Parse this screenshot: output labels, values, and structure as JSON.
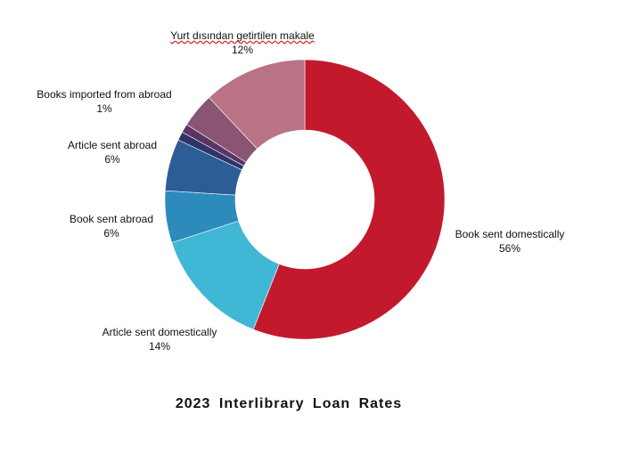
{
  "chart_data": {
    "type": "pie",
    "title": "2023 Interlibrary Loan Rates",
    "slices": [
      {
        "label": "Book sent domestically",
        "value": 56,
        "pct_label": "56%",
        "color": "#C3192D"
      },
      {
        "label": "Article sent domestically",
        "value": 14,
        "pct_label": "14%",
        "color": "#41B7D6"
      },
      {
        "label": "Book sent abroad",
        "value": 6,
        "pct_label": "6%",
        "color": "#2C8BBB"
      },
      {
        "label": "Article sent abroad",
        "value": 6,
        "pct_label": "6%",
        "color": "#2D5D95"
      },
      {
        "label": "",
        "value": 1,
        "pct_label": "",
        "color": "#2E3468"
      },
      {
        "label": "Books imported from abroad",
        "value": 1,
        "pct_label": "1%",
        "color": "#5A3563"
      },
      {
        "label": "",
        "value": 4,
        "pct_label": "",
        "color": "#8A5473"
      },
      {
        "label": "Yurt dısından getirtilen makale",
        "value": 12,
        "pct_label": "12%",
        "color": "#BA7385"
      }
    ]
  }
}
